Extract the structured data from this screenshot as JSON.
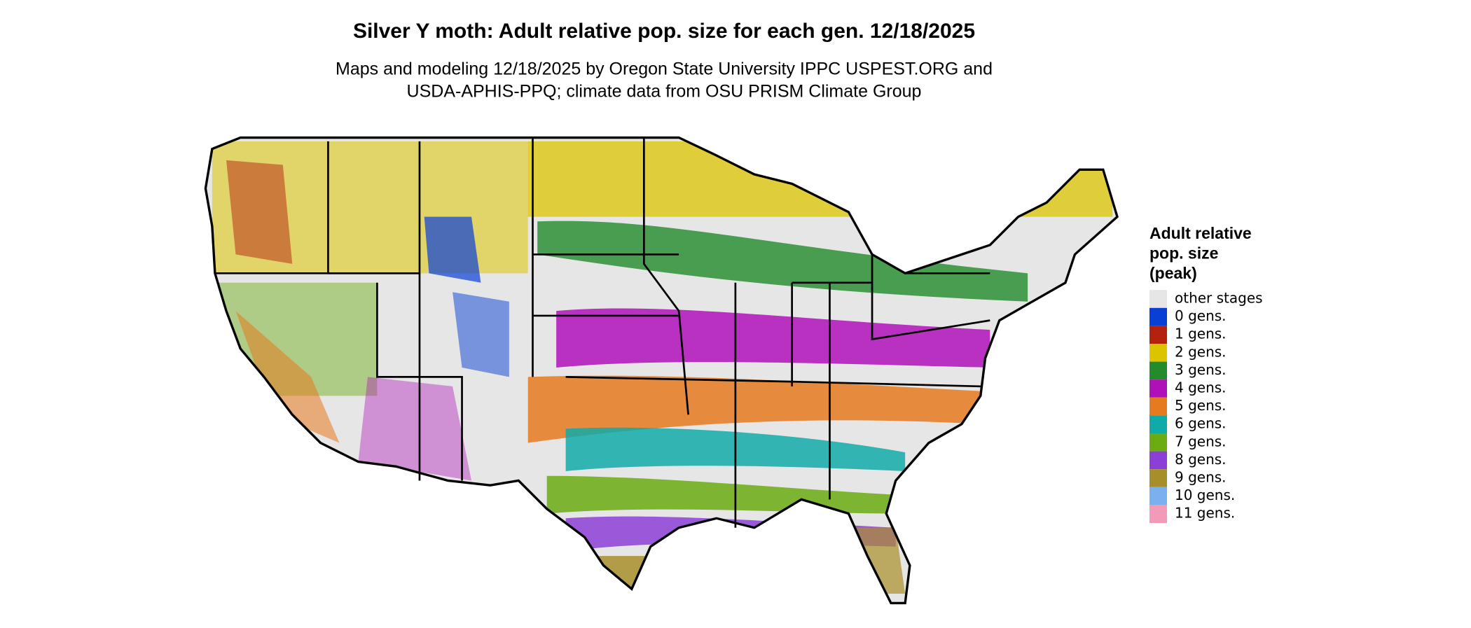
{
  "title": "Silver Y moth: Adult relative pop. size for each gen. 12/18/2025",
  "subtitle": [
    "Maps and modeling 12/18/2025 by Oregon State University IPPC USPEST.ORG and",
    "USDA-APHIS-PPQ; climate data from OSU PRISM Climate Group"
  ],
  "legend": {
    "title": [
      "Adult relative",
      "pop. size",
      "(peak)"
    ],
    "items": [
      {
        "label": "other stages",
        "color": "#e6e6e6"
      },
      {
        "label": "0 gens.",
        "color": "#0a3fd6"
      },
      {
        "label": "1 gens.",
        "color": "#b5210f"
      },
      {
        "label": "2 gens.",
        "color": "#dcc400"
      },
      {
        "label": "3 gens.",
        "color": "#228b2a"
      },
      {
        "label": "4 gens.",
        "color": "#b010b8"
      },
      {
        "label": "5 gens.",
        "color": "#e57a1f"
      },
      {
        "label": "6 gens.",
        "color": "#10aaa8"
      },
      {
        "label": "7 gens.",
        "color": "#6aac12"
      },
      {
        "label": "8 gens.",
        "color": "#8c3fd6"
      },
      {
        "label": "9 gens.",
        "color": "#a88e2a"
      },
      {
        "label": "10 gens.",
        "color": "#7ab0ee"
      },
      {
        "label": "11 gens.",
        "color": "#f29ab8"
      }
    ]
  }
}
